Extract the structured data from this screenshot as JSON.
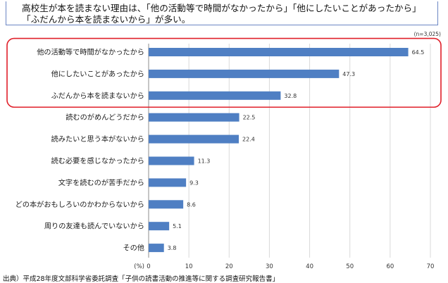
{
  "title": "高校生が本を読まない理由は、「他の活動等で時間がなかったから」「他にしたいことがあったから」「ふだんから本を読まないから」が多い。",
  "note_n": "(n=3,025)",
  "source": "出典）平成28年度文部科学省委託調査「子供の読書活動の推進等に関する調査研究報告書」",
  "chart_data": {
    "type": "bar",
    "orientation": "horizontal",
    "categories": [
      "他の活動等で時間がなかったから",
      "他にしたいことがあったから",
      "ふだんから本を読まないから",
      "読むのがめんどうだから",
      "読みたいと思う本がないから",
      "読む必要を感じなかったから",
      "文字を読むのが苦手だから",
      "どの本がおもしろいのかわからないから",
      "周りの友達も読んでいないから",
      "その他"
    ],
    "values": [
      64.5,
      47.3,
      32.8,
      22.5,
      22.4,
      11.3,
      9.3,
      8.6,
      5.1,
      3.8
    ],
    "value_labels": [
      "64.5",
      "47.3",
      "32.8",
      "22.5",
      "22.4",
      "11.3",
      "9.3",
      "8.6",
      "5.1",
      "3.8"
    ],
    "xlim": [
      0,
      70
    ],
    "ticks": [
      "0",
      "10",
      "20",
      "30",
      "40",
      "50",
      "60",
      "70"
    ],
    "xlabel": "(%)",
    "grid": true,
    "bar_color": "#4f7fc3",
    "highlight_color": "#e0202a",
    "highlight_count": 3
  }
}
